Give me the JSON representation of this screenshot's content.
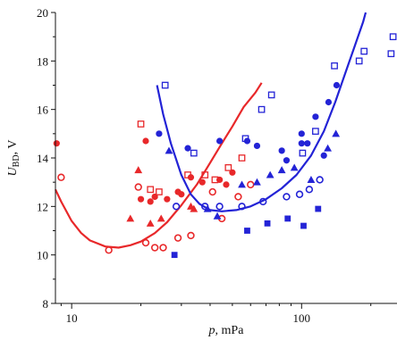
{
  "chart_data": {
    "type": "scatter",
    "xlabel": {
      "main": "p",
      "rest": ", mPa"
    },
    "ylabel": {
      "main": "U",
      "sub": "BD",
      "rest": ", V"
    },
    "xscale": "log",
    "xlim": [
      8.5,
      260
    ],
    "ylim": [
      8,
      20
    ],
    "x_ticks": [
      10,
      100
    ],
    "x_tick_labels": [
      "10",
      "100"
    ],
    "y_ticks": [
      8,
      10,
      12,
      14,
      16,
      18,
      20
    ],
    "y_tick_labels": [
      "8",
      "10",
      "12",
      "14",
      "16",
      "18",
      "20"
    ],
    "grid": false,
    "legend": "none",
    "colors": {
      "red": "#e8282a",
      "blue": "#2323d6"
    },
    "series": [
      {
        "color": "red",
        "marker": "filled-circle",
        "points": [
          [
            8.6,
            14.6
          ],
          [
            20,
            12.3
          ],
          [
            21,
            14.7
          ],
          [
            22,
            12.2
          ],
          [
            23,
            12.4
          ],
          [
            26,
            12.3
          ],
          [
            29,
            12.6
          ],
          [
            30,
            12.5
          ],
          [
            33,
            13.2
          ],
          [
            37,
            13.0
          ],
          [
            44,
            13.1
          ],
          [
            47,
            12.9
          ],
          [
            50,
            13.4
          ]
        ]
      },
      {
        "color": "red",
        "marker": "open-circle",
        "points": [
          [
            9,
            13.2
          ],
          [
            14.5,
            10.2
          ],
          [
            19.5,
            12.8
          ],
          [
            21,
            10.5
          ],
          [
            23,
            10.3
          ],
          [
            25,
            10.3
          ],
          [
            29,
            10.7
          ],
          [
            33,
            10.8
          ],
          [
            41,
            12.6
          ],
          [
            45,
            11.5
          ],
          [
            53,
            12.4
          ],
          [
            60,
            12.9
          ]
        ]
      },
      {
        "color": "red",
        "marker": "filled-triangle",
        "points": [
          [
            18,
            11.5
          ],
          [
            19.5,
            13.5
          ],
          [
            22,
            11.3
          ],
          [
            24.5,
            11.5
          ],
          [
            33,
            12.0
          ],
          [
            34,
            11.9
          ]
        ]
      },
      {
        "color": "red",
        "marker": "open-square",
        "points": [
          [
            20,
            15.4
          ],
          [
            22,
            12.7
          ],
          [
            24,
            12.6
          ],
          [
            32,
            13.3
          ],
          [
            38,
            13.3
          ],
          [
            42,
            13.1
          ],
          [
            48,
            13.6
          ],
          [
            55,
            14.0
          ]
        ]
      },
      {
        "color": "red",
        "marker": "curve",
        "points": [
          [
            8.5,
            12.7
          ],
          [
            9,
            12.2
          ],
          [
            10,
            11.4
          ],
          [
            11,
            10.9
          ],
          [
            12,
            10.6
          ],
          [
            14,
            10.35
          ],
          [
            16,
            10.3
          ],
          [
            18,
            10.4
          ],
          [
            20,
            10.55
          ],
          [
            23,
            10.9
          ],
          [
            26,
            11.35
          ],
          [
            30,
            12.05
          ],
          [
            35,
            12.9
          ],
          [
            40,
            13.8
          ],
          [
            45,
            14.6
          ],
          [
            50,
            15.3
          ],
          [
            56,
            16.1
          ],
          [
            63,
            16.7
          ],
          [
            67,
            17.1
          ]
        ]
      },
      {
        "color": "blue",
        "marker": "filled-circle",
        "points": [
          [
            24,
            15.0
          ],
          [
            32,
            14.4
          ],
          [
            44,
            14.7
          ],
          [
            58,
            14.7
          ],
          [
            64,
            14.5
          ],
          [
            82,
            14.3
          ],
          [
            86,
            13.9
          ],
          [
            100,
            14.6
          ],
          [
            100,
            15.0
          ],
          [
            106,
            14.6
          ],
          [
            115,
            15.7
          ],
          [
            125,
            14.1
          ],
          [
            131,
            16.3
          ],
          [
            142,
            17.0
          ]
        ]
      },
      {
        "color": "blue",
        "marker": "open-circle",
        "points": [
          [
            28.5,
            12.0
          ],
          [
            38,
            12.0
          ],
          [
            44,
            12.0
          ],
          [
            55,
            12.0
          ],
          [
            68,
            12.2
          ],
          [
            86,
            12.4
          ],
          [
            98,
            12.5
          ],
          [
            108,
            12.7
          ],
          [
            120,
            13.1
          ]
        ]
      },
      {
        "color": "blue",
        "marker": "filled-triangle",
        "points": [
          [
            26.5,
            14.3
          ],
          [
            39,
            11.9
          ],
          [
            43,
            11.6
          ],
          [
            55,
            12.9
          ],
          [
            64,
            13.0
          ],
          [
            73,
            13.3
          ],
          [
            82,
            13.5
          ],
          [
            93,
            13.6
          ],
          [
            110,
            13.1
          ],
          [
            130,
            14.4
          ],
          [
            141,
            15.0
          ]
        ]
      },
      {
        "color": "blue",
        "marker": "filled-square",
        "points": [
          [
            28,
            10.0
          ],
          [
            58,
            11.0
          ],
          [
            71,
            11.3
          ],
          [
            87,
            11.5
          ],
          [
            102,
            11.2
          ],
          [
            118,
            11.9
          ]
        ]
      },
      {
        "color": "blue",
        "marker": "open-square",
        "points": [
          [
            25.5,
            17.0
          ],
          [
            34,
            14.2
          ],
          [
            57,
            14.8
          ],
          [
            67,
            16.0
          ],
          [
            74,
            16.6
          ],
          [
            101,
            14.2
          ],
          [
            115,
            15.1
          ],
          [
            139,
            17.8
          ],
          [
            178,
            18.0
          ],
          [
            187,
            18.4
          ],
          [
            245,
            18.3
          ],
          [
            250,
            19.0
          ]
        ]
      },
      {
        "color": "blue",
        "marker": "curve",
        "points": [
          [
            23.5,
            17.0
          ],
          [
            25,
            15.8
          ],
          [
            27,
            14.6
          ],
          [
            30,
            13.3
          ],
          [
            33,
            12.5
          ],
          [
            36,
            12.1
          ],
          [
            40,
            11.85
          ],
          [
            45,
            11.8
          ],
          [
            52,
            11.85
          ],
          [
            60,
            12.0
          ],
          [
            70,
            12.3
          ],
          [
            82,
            12.75
          ],
          [
            95,
            13.3
          ],
          [
            110,
            14.1
          ],
          [
            125,
            15.1
          ],
          [
            140,
            16.3
          ],
          [
            155,
            17.5
          ],
          [
            170,
            18.6
          ],
          [
            185,
            19.6
          ],
          [
            190,
            20.0
          ]
        ]
      }
    ]
  }
}
